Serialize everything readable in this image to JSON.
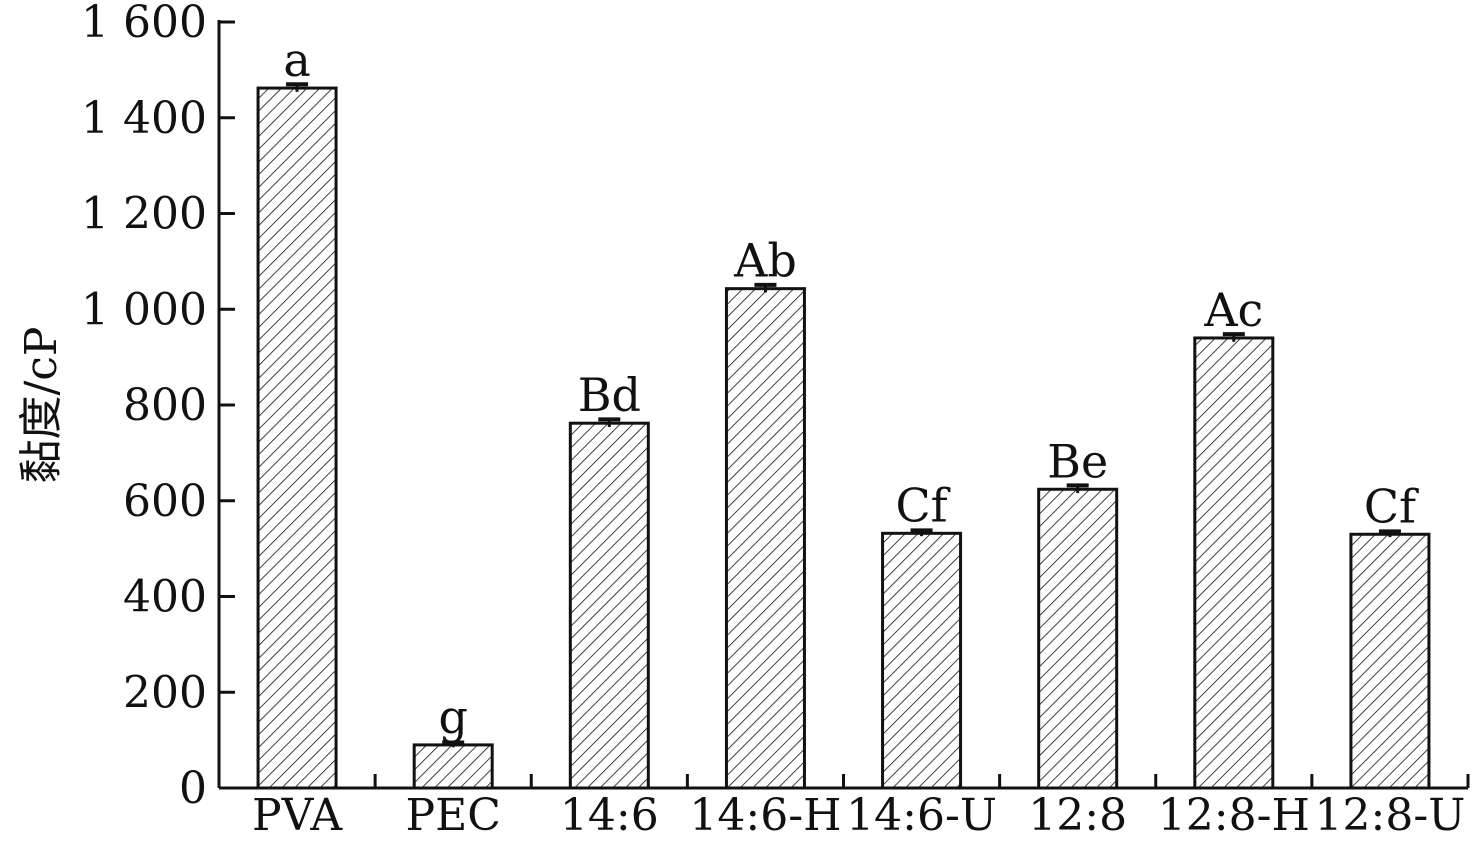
{
  "chart_data": {
    "type": "bar",
    "title": "",
    "xlabel": "",
    "ylabel": "黏度/cP",
    "ylim": [
      0,
      1600
    ],
    "yticks": [
      0,
      200,
      400,
      600,
      800,
      1000,
      1200,
      1400,
      1600
    ],
    "ytick_labels": [
      "0",
      "200",
      "400",
      "600",
      "800",
      "1 000",
      "1 200",
      "1 400",
      "1 600"
    ],
    "categories": [
      "PVA",
      "PEC",
      "14:6",
      "14:6-H",
      "14:6-U",
      "12:8",
      "12:8-H",
      "12:8-U"
    ],
    "values": [
      1462,
      90,
      762,
      1043,
      532,
      624,
      940,
      530
    ],
    "errors": [
      8,
      5,
      8,
      8,
      6,
      8,
      8,
      6
    ],
    "significance_labels": [
      "a",
      "g",
      "Bd",
      "Ab",
      "Cf",
      "Be",
      "Ac",
      "Cf"
    ],
    "grid": false,
    "legend": "none",
    "bar_fill": "hatched",
    "colors": {
      "bar_stroke": "#111111",
      "hatch": "#111111",
      "axis": "#111111",
      "background": "#ffffff"
    }
  }
}
